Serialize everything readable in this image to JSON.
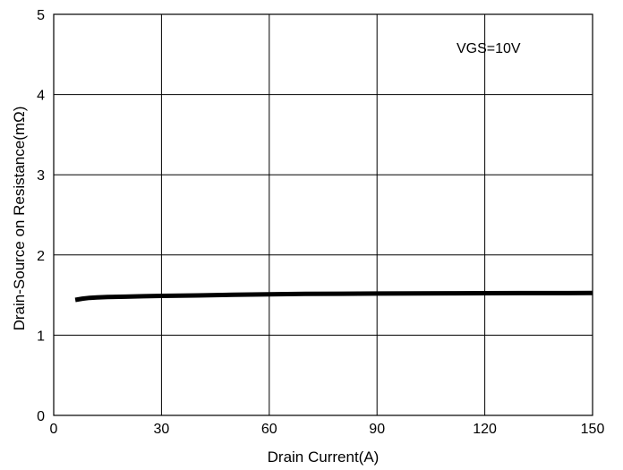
{
  "chart_data": {
    "type": "line",
    "title": "",
    "xlabel": "Drain Current(A)",
    "ylabel": "Drain-Source on Resistance(mΩ)",
    "xlim": [
      0,
      150
    ],
    "ylim": [
      0,
      5
    ],
    "x_ticks": [
      "0",
      "30",
      "60",
      "90",
      "120",
      "150"
    ],
    "y_ticks": [
      "0",
      "1",
      "2",
      "3",
      "4",
      "5"
    ],
    "grid": true,
    "legend": "none",
    "annotation": "VGS=10V",
    "series": [
      {
        "color": "#000000",
        "x": [
          6,
          8,
          10,
          12,
          15,
          20,
          25,
          30,
          40,
          50,
          60,
          70,
          80,
          90,
          100,
          110,
          120,
          130,
          140,
          150
        ],
        "y": [
          1.44,
          1.455,
          1.465,
          1.47,
          1.475,
          1.48,
          1.485,
          1.49,
          1.495,
          1.505,
          1.51,
          1.515,
          1.517,
          1.519,
          1.52,
          1.522,
          1.523,
          1.524,
          1.525,
          1.527
        ]
      }
    ]
  }
}
